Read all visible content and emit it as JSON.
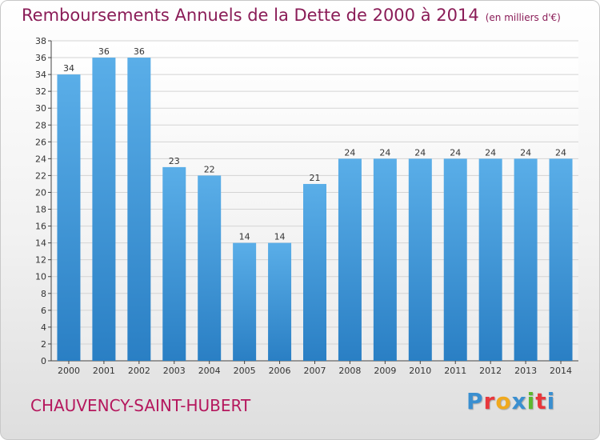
{
  "chart_data": {
    "type": "bar",
    "title": "Remboursements Annuels de la Dette de 2000 à 2014",
    "unit_note": "(en milliers d'€)",
    "xlabel": "",
    "ylabel": "",
    "ylim": [
      0,
      38
    ],
    "yticks": [
      0,
      2,
      4,
      6,
      8,
      10,
      12,
      14,
      16,
      18,
      20,
      22,
      24,
      26,
      28,
      30,
      32,
      34,
      36,
      38
    ],
    "grid": true,
    "categories": [
      "2000",
      "2001",
      "2002",
      "2003",
      "2004",
      "2005",
      "2006",
      "2007",
      "2008",
      "2009",
      "2010",
      "2011",
      "2012",
      "2013",
      "2014"
    ],
    "values": [
      34,
      36,
      36,
      23,
      22,
      14,
      14,
      21,
      24,
      24,
      24,
      24,
      24,
      24,
      24
    ],
    "bar_color_top": "#5aaee8",
    "bar_color_bottom": "#2a7fc4"
  },
  "footer": {
    "commune": "CHAUVENCY-SAINT-HUBERT",
    "logo_text": "Proxiti",
    "logo_colors": [
      "#3a8fd0",
      "#e8373c",
      "#f0a91e",
      "#3a8fd0",
      "#5cb82f",
      "#e8373c",
      "#3a8fd0"
    ]
  }
}
